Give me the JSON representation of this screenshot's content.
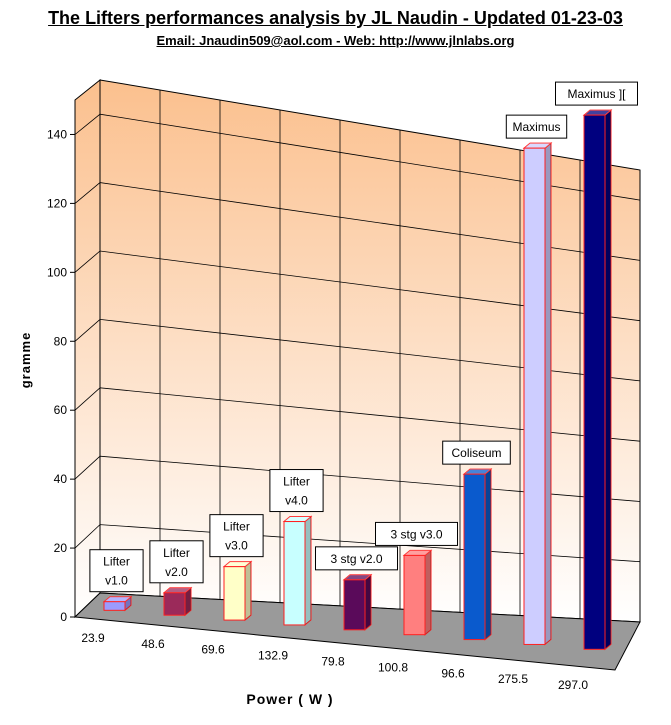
{
  "header": {
    "title": "The Lifters performances analysis by JL Naudin - Updated 01-23-03",
    "subtitle": "Email: Jnaudin509@aol.com - Web: http://www.jlnlabs.org"
  },
  "colors": {
    "wall_top": "#fbc08e",
    "wall_bottom": "#ffffff",
    "floor": "#9a9a9a",
    "grid": "#000000",
    "bar_edge": "#ff2020"
  },
  "chart_data": {
    "type": "bar",
    "style": "3d",
    "title": "The Lifters performances analysis by JL Naudin - Updated 01-23-03",
    "subtitle": "Email: Jnaudin509@aol.com - Web: http://www.jlnlabs.org",
    "xlabel": "Power ( W )",
    "ylabel": "gramme",
    "ylim": [
      0,
      150
    ],
    "yticks": [
      0,
      20,
      40,
      60,
      80,
      100,
      120,
      140
    ],
    "grid": true,
    "categories": [
      "23.9",
      "48.6",
      "69.6",
      "132.9",
      "79.8",
      "100.8",
      "96.6",
      "275.5",
      "297.0"
    ],
    "values": [
      2.5,
      6.5,
      15.5,
      30,
      14.5,
      23,
      48,
      144,
      155
    ],
    "data_labels": [
      [
        "Lifter",
        "v1.0"
      ],
      [
        "Lifter",
        "v2.0"
      ],
      [
        "Lifter",
        "v3.0"
      ],
      [
        "Lifter",
        "v4.0"
      ],
      [
        "3 stg v2.0"
      ],
      [
        "3 stg v3.0"
      ],
      [
        "Coliseum"
      ],
      [
        "Maximus"
      ],
      [
        "Maximus ]["
      ]
    ],
    "bar_colors": [
      "#9b9bff",
      "#9b2a5a",
      "#ffffc8",
      "#c8ffff",
      "#5a0a5a",
      "#ff7f7f",
      "#0a5acd",
      "#cdcdff",
      "#00007f"
    ]
  }
}
